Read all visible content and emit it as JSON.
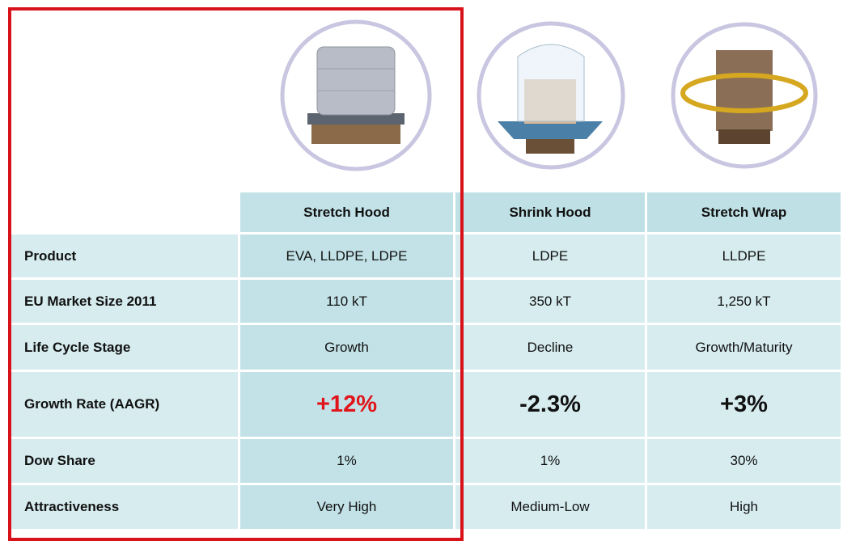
{
  "table": {
    "columns": [
      "Stretch Hood",
      "Shrink Hood",
      "Stretch Wrap"
    ],
    "rows": [
      [
        "Product",
        "EVA, LLDPE, LDPE",
        "LDPE",
        "LLDPE"
      ],
      [
        "EU Market Size 2011",
        "110 kT",
        "350 kT",
        "1,250 kT"
      ],
      [
        "Life Cycle Stage",
        "Growth",
        "Decline",
        "Growth/Maturity"
      ],
      [
        "Growth Rate (AAGR)",
        "+12%",
        "-2.3%",
        "+3%"
      ],
      [
        "Dow Share",
        "1%",
        "1%",
        "30%"
      ],
      [
        "Attractiveness",
        "Very High",
        "Medium-Low",
        "High"
      ]
    ]
  }
}
